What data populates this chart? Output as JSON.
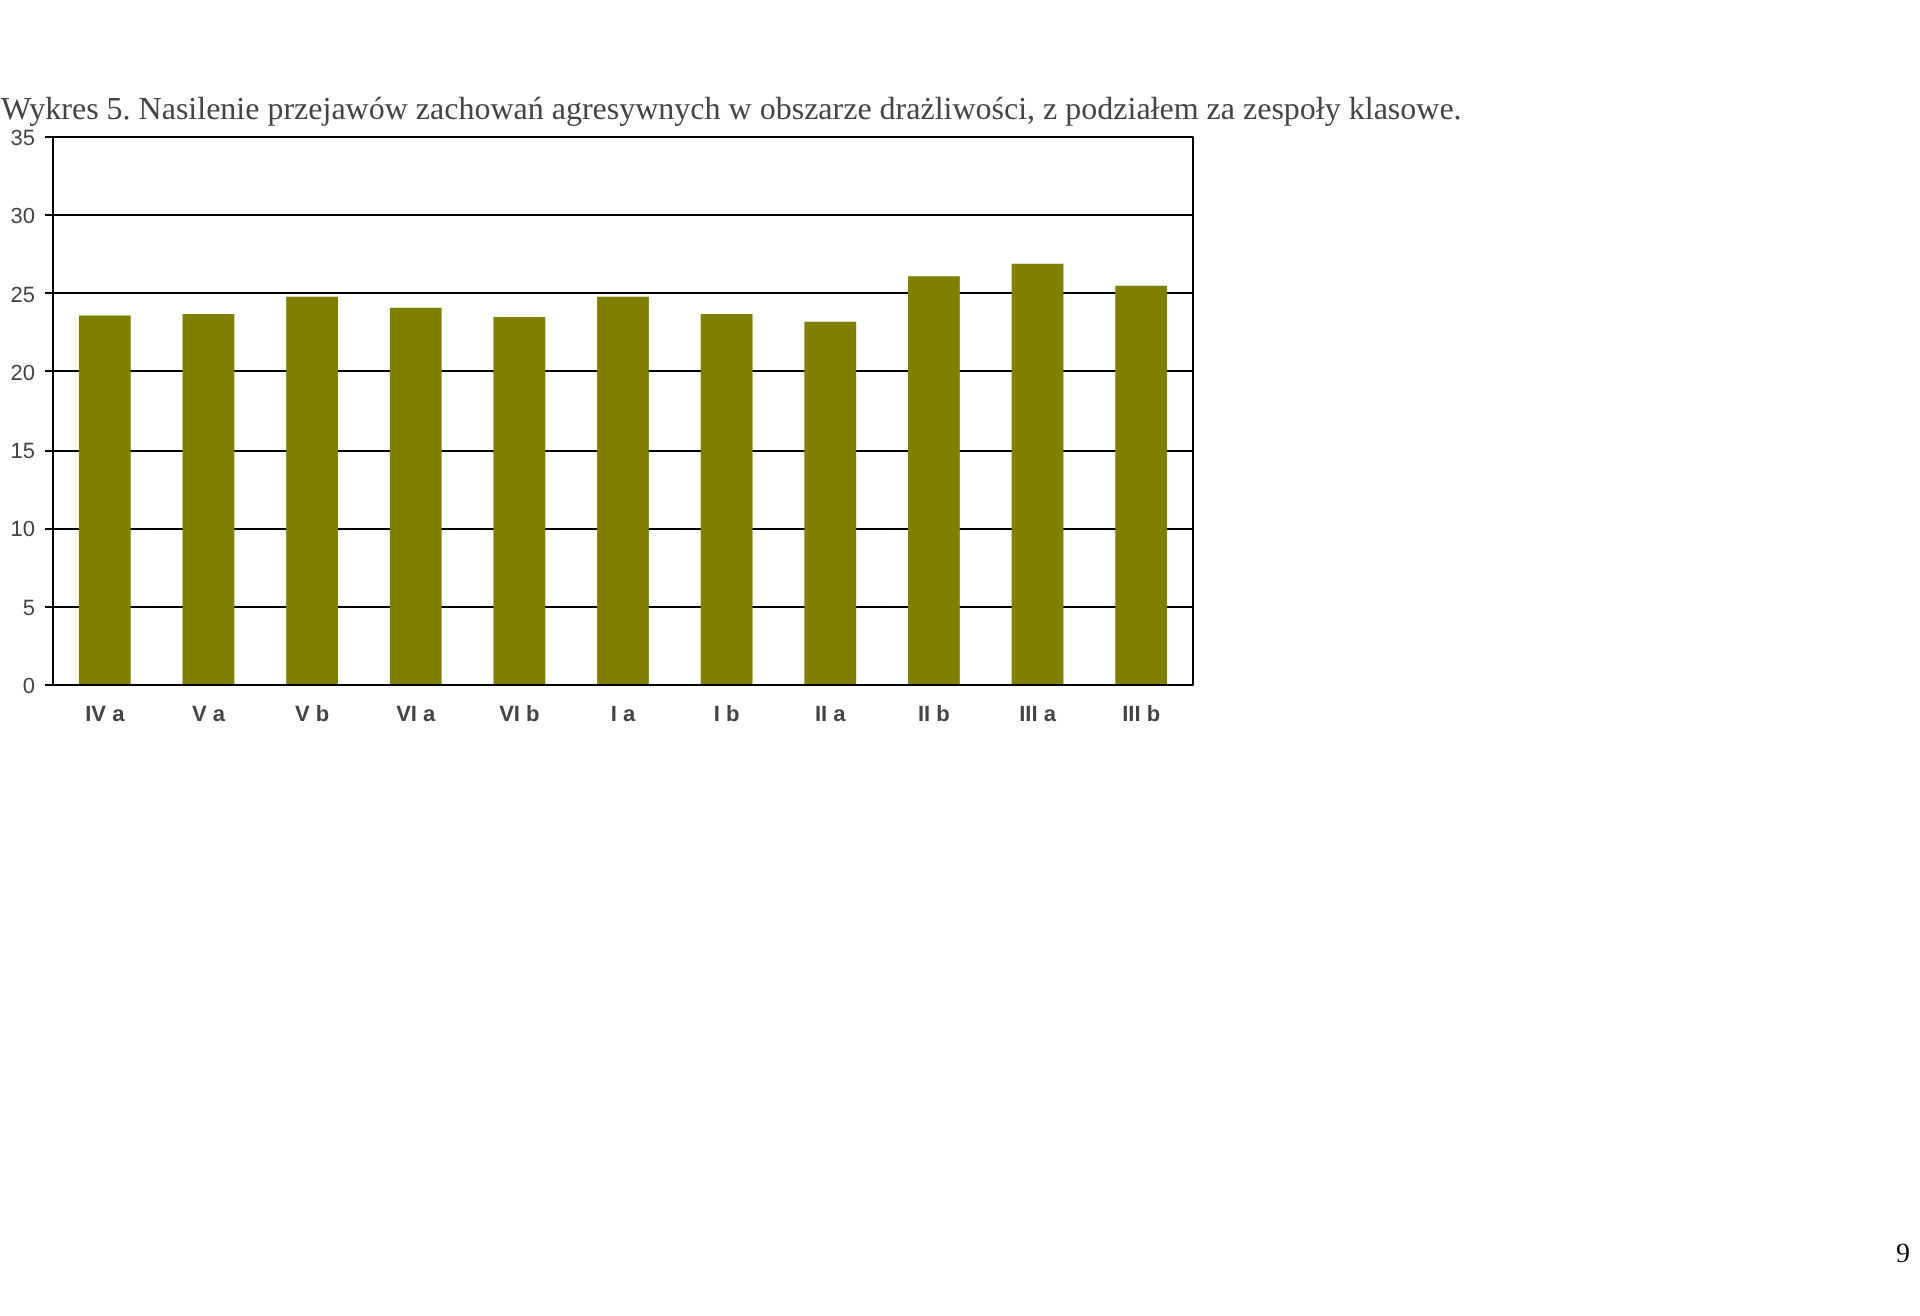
{
  "chart_data": {
    "type": "bar",
    "title": "Wykres 5. Nasilenie przejawów zachowań agresywnych w obszarze drażliwości, z podziałem za zespoły klasowe.",
    "categories": [
      "IV a",
      "V a",
      "V b",
      "VI a",
      "VI b",
      "I a",
      "I b",
      "II a",
      "II b",
      "III a",
      "III b"
    ],
    "values": [
      23.6,
      23.7,
      24.8,
      24.1,
      23.5,
      24.8,
      23.7,
      23.2,
      26.1,
      26.9,
      25.5
    ],
    "color": "#808000",
    "ylim": [
      0,
      35
    ],
    "yticks": [
      0,
      5,
      10,
      15,
      20,
      25,
      30,
      35
    ],
    "grid": "y",
    "annotations": [
      "9"
    ]
  }
}
